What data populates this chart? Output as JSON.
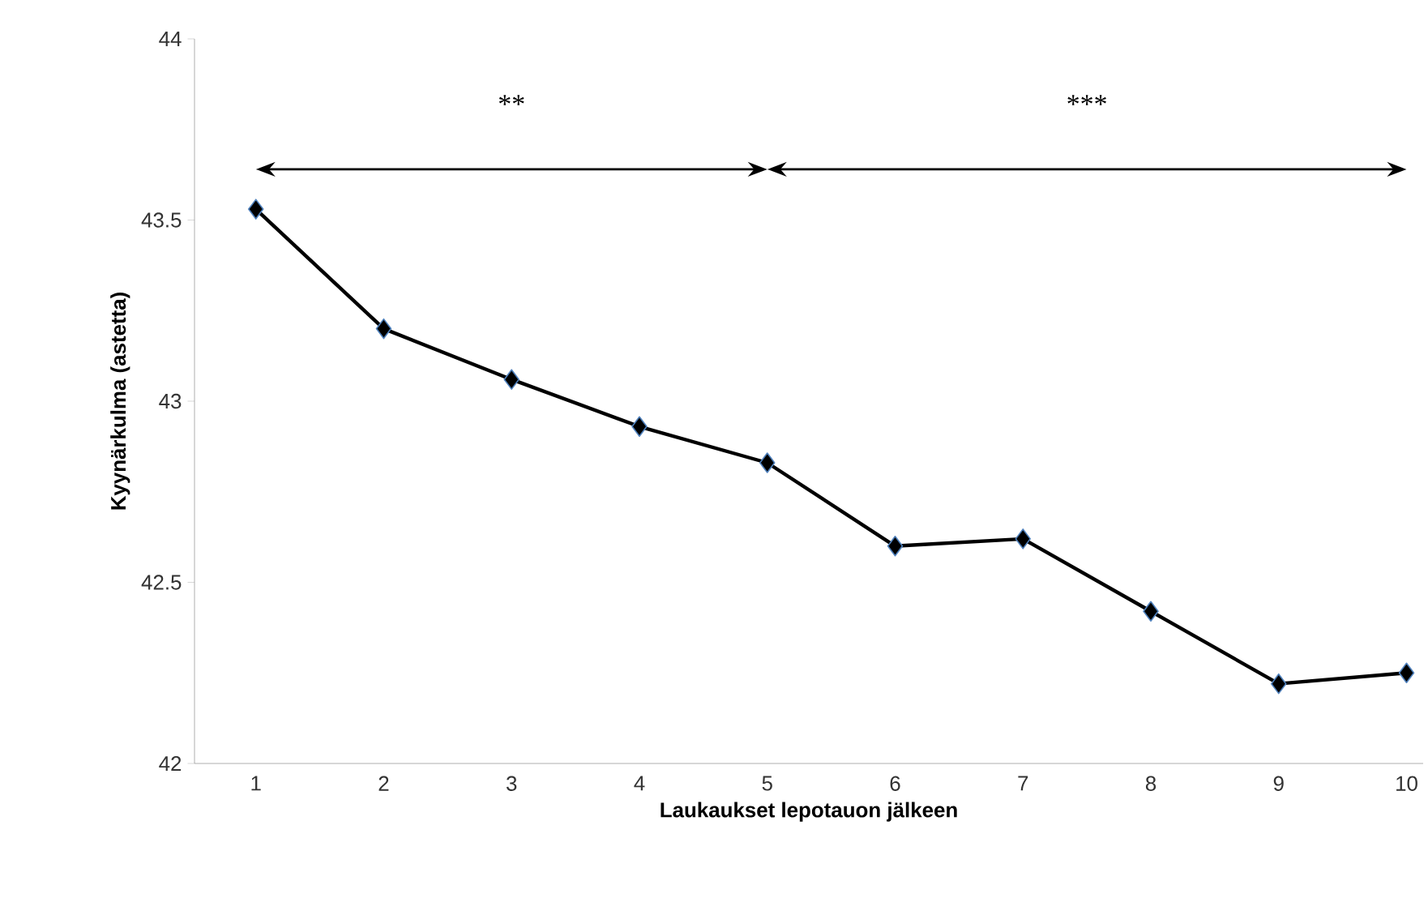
{
  "chart_data": {
    "type": "line",
    "xlabel": "Laukaukset lepotauon jälkeen",
    "ylabel": "Kyynärkulma (astetta)",
    "categories": [
      "1",
      "2",
      "3",
      "4",
      "5",
      "6",
      "7",
      "8",
      "9",
      "10"
    ],
    "series": [
      {
        "color": "#000000",
        "values": [
          43.53,
          43.2,
          43.06,
          42.93,
          42.83,
          42.6,
          42.62,
          42.42,
          42.22,
          42.25
        ]
      }
    ],
    "ylim": [
      42,
      44
    ],
    "yticks": [
      42,
      42.5,
      43,
      43.5,
      44
    ],
    "marker": "diamond",
    "line_style": "solid",
    "grid": false,
    "legend": false,
    "annotations": [
      "**",
      "***"
    ]
  }
}
